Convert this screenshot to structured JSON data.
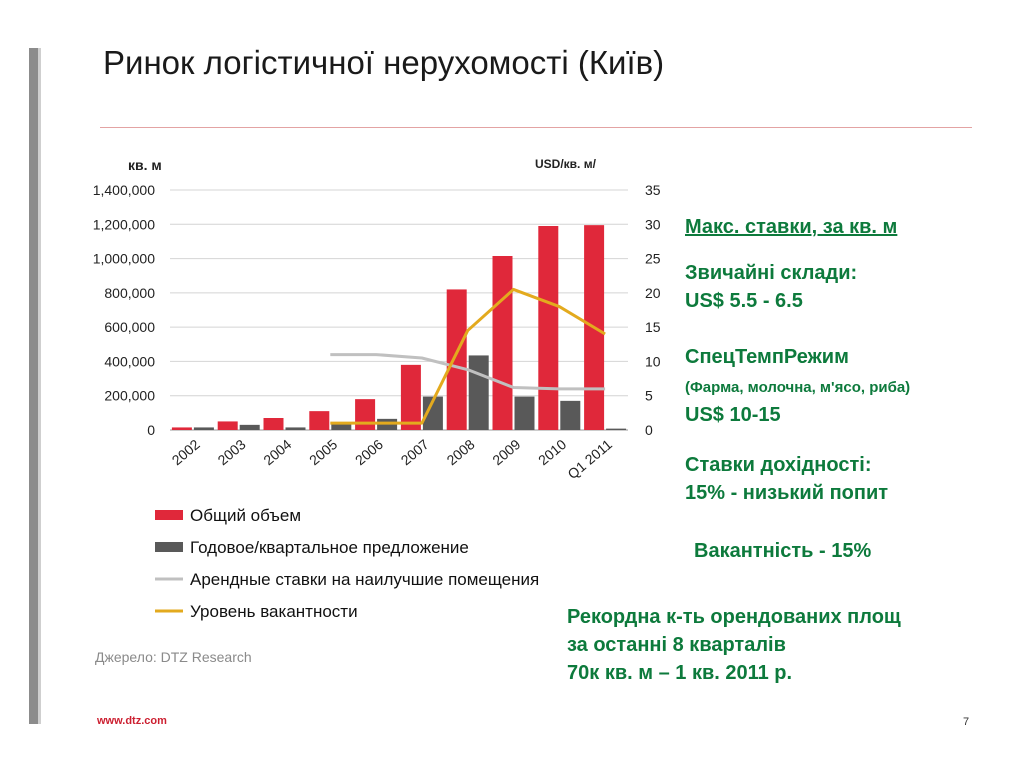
{
  "slide": {
    "title": "Ринок логістичної нерухомості (Київ)",
    "source": "Джерело: DTZ Research",
    "footer_url": "www.dtz.com",
    "page_number": "7"
  },
  "colors": {
    "total_volume": "#e0283a",
    "supply": "#595959",
    "rents": "#c0c0c0",
    "vacancy": "#e3aa1e",
    "green_text": "#0d7a3c",
    "footer_red": "#cc1f30"
  },
  "chart_data": {
    "type": "bar",
    "left_axis_unit": "кв. м",
    "right_axis_unit": "USD/кв. м/",
    "categories": [
      "2002",
      "2003",
      "2004",
      "2005",
      "2006",
      "2007",
      "2008",
      "2009",
      "2010",
      "Q1 2011"
    ],
    "left_ylim": [
      0,
      1400000
    ],
    "left_ticks": [
      "0",
      "200,000",
      "400,000",
      "600,000",
      "800,000",
      "1,000,000",
      "1,200,000",
      "1,400,000"
    ],
    "right_ylim": [
      0,
      35
    ],
    "right_ticks": [
      "0",
      "5",
      "10",
      "15",
      "20",
      "25",
      "30",
      "35"
    ],
    "grid": true,
    "legend_position": "bottom-left",
    "series": [
      {
        "name": "Общий объем",
        "kind": "bar",
        "axis": "left",
        "color": "#e0283a",
        "values": [
          15000,
          50000,
          70000,
          110000,
          180000,
          380000,
          820000,
          1015000,
          1190000,
          1195000
        ]
      },
      {
        "name": "Годовое/квартальное предложение",
        "kind": "bar",
        "axis": "left",
        "color": "#595959",
        "values": [
          15000,
          30000,
          15000,
          35000,
          65000,
          195000,
          435000,
          195000,
          170000,
          8000
        ]
      },
      {
        "name": "Арендные ставки на наилучшие помещения",
        "kind": "line",
        "axis": "right",
        "color": "#c0c0c0",
        "values": [
          null,
          null,
          null,
          11,
          11,
          10.5,
          8.8,
          6.2,
          6,
          6
        ]
      },
      {
        "name": "Уровень вакантности",
        "kind": "line",
        "axis": "right",
        "color": "#e3aa1e",
        "values": [
          null,
          null,
          null,
          1,
          1,
          1,
          14.5,
          20.5,
          18,
          14
        ]
      }
    ]
  },
  "notes": {
    "max_rates": "Макс. ставки, за кв. м",
    "warehouses_label": "Звичайні склади:",
    "warehouses_price": "US$ 5.5  - 6.5",
    "special_label": "СпецТемпРежим",
    "special_sub": "(Фарма, молочна, м'ясо, риба)",
    "special_price": "US$ 10-15",
    "yield_label": "Ставки дохідності:",
    "yield_value": "15% - низький попит",
    "vacancy": "Вакантність - 15%",
    "record_line1": "Рекордна к-ть орендованих площ",
    "record_line2": "за останні 8 кварталів",
    "record_line3": "70к кв. м – 1 кв. 2011 р."
  }
}
